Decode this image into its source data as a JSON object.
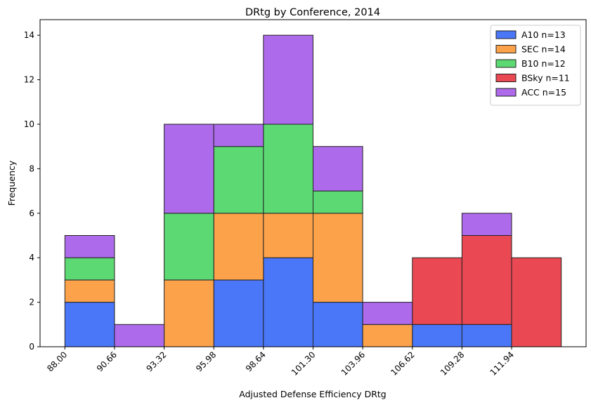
{
  "chart_data": {
    "type": "bar",
    "stacked": true,
    "title": "DRtg by Conference, 2014",
    "xlabel": "Adjusted Defense Efficiency DRtg",
    "ylabel": "Frequency",
    "bin_edges": [
      88.0,
      90.66,
      93.32,
      95.98,
      98.64,
      101.3,
      103.96,
      106.62,
      109.28,
      111.94,
      114.6
    ],
    "x_tick_labels": [
      "88.00",
      "90.66",
      "93.32",
      "95.98",
      "98.64",
      "101.30",
      "103.96",
      "106.62",
      "109.28",
      "111.94"
    ],
    "y_ticks": [
      0,
      2,
      4,
      6,
      8,
      10,
      12,
      14
    ],
    "ylim": [
      0,
      14.7
    ],
    "xlim": [
      86.67,
      115.93
    ],
    "grid": false,
    "legend_position": "top-right",
    "series": [
      {
        "name": "A10 n=13",
        "color": "#4a76f8",
        "values": [
          2,
          0,
          0,
          3,
          4,
          2,
          0,
          1,
          1,
          0
        ]
      },
      {
        "name": "SEC n=14",
        "color": "#fba24b",
        "values": [
          1,
          0,
          3,
          3,
          2,
          4,
          1,
          0,
          0,
          0
        ]
      },
      {
        "name": "B10 n=12",
        "color": "#5dd974",
        "values": [
          1,
          0,
          3,
          3,
          4,
          1,
          0,
          0,
          0,
          0
        ]
      },
      {
        "name": "BSky n=11",
        "color": "#ea4852",
        "values": [
          0,
          0,
          0,
          0,
          0,
          0,
          0,
          3,
          4,
          4
        ]
      },
      {
        "name": "ACC n=15",
        "color": "#ad6aeb",
        "values": [
          1,
          1,
          4,
          1,
          4,
          2,
          1,
          0,
          1,
          0
        ]
      }
    ]
  }
}
